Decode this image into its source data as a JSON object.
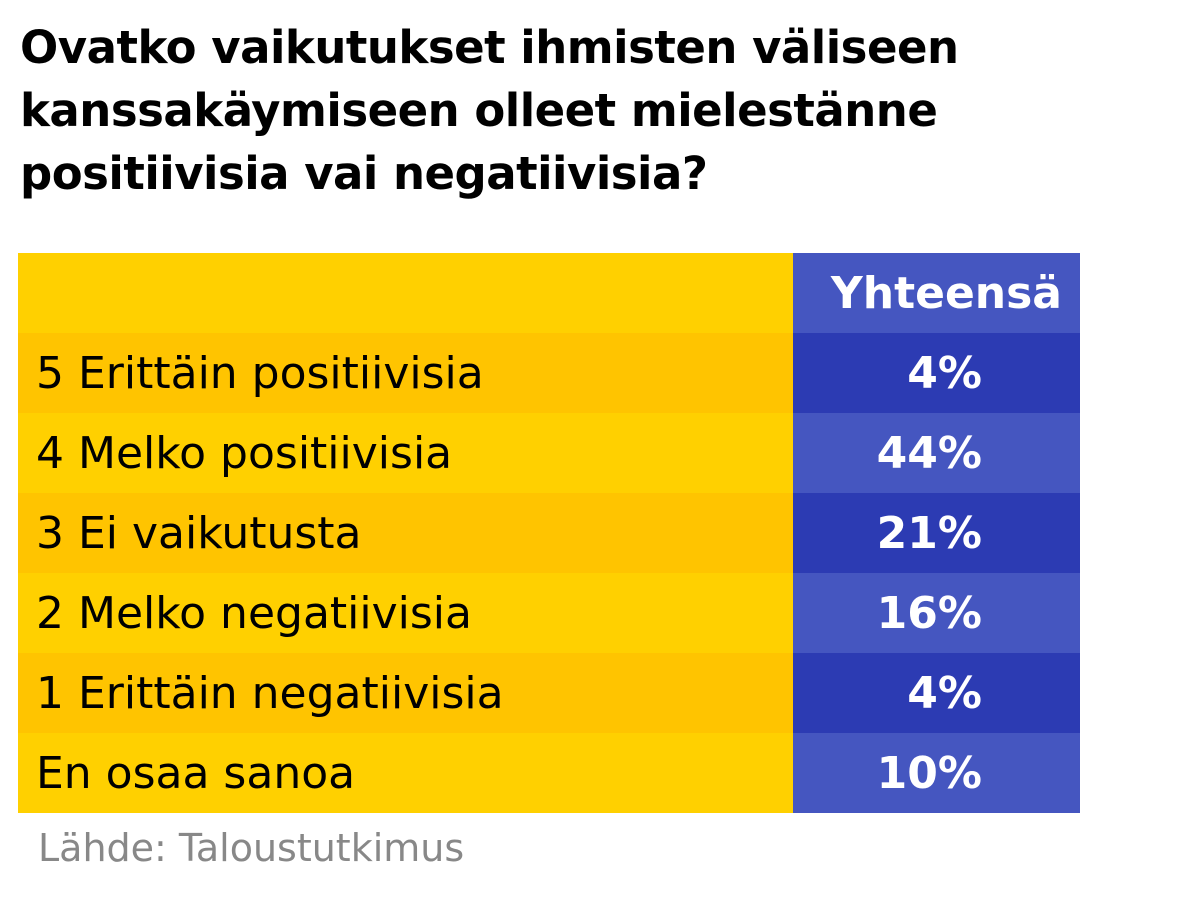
{
  "chart_data": {
    "type": "table",
    "title": "Ovatko vaikutukset ihmisten väliseen kanssakäymiseen olleet mielestänne positiivisia vai negatiivisia?",
    "column_header": "Yhteensä",
    "categories": [
      "5 Erittäin positiivisia",
      "4 Melko positiivisia",
      "3 Ei vaikutusta",
      "2 Melko negatiivisia",
      "1 Erittäin negatiivisia",
      "En osaa sanoa"
    ],
    "values": [
      4,
      44,
      21,
      16,
      4,
      10
    ],
    "value_labels": [
      "4%",
      "44%",
      "21%",
      "16%",
      "4%",
      "10%"
    ],
    "unit": "%",
    "source": "Lähde: Taloustutkimus"
  },
  "colors": {
    "label_light": "#ffd000",
    "label_dark": "#ffc400",
    "value_light": "#4556c0",
    "value_dark": "#2c3bb3",
    "source_text": "#888888"
  }
}
